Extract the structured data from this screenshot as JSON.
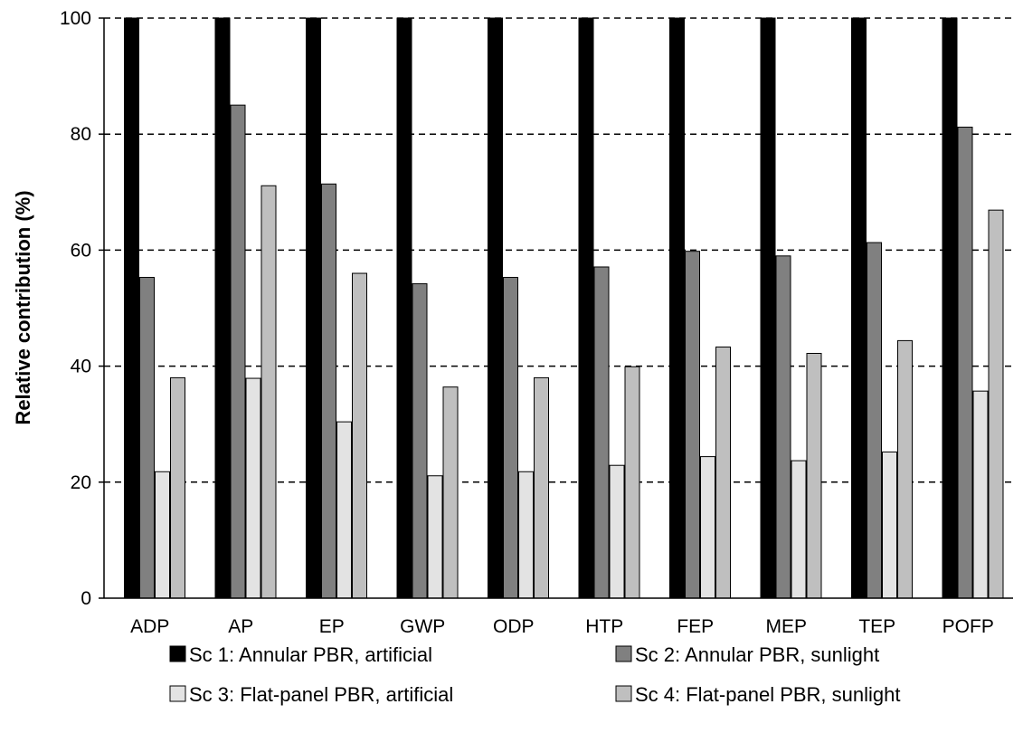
{
  "chart_data": {
    "type": "bar",
    "title": "",
    "xlabel": "",
    "ylabel": "Relative contribution  (%)",
    "ylim": [
      0,
      100
    ],
    "yticks": [
      0,
      20,
      40,
      60,
      80,
      100
    ],
    "grid": "horizontal-dashed",
    "legend_position": "bottom",
    "categories": [
      "ADP",
      "AP",
      "EP",
      "GWP",
      "ODP",
      "HTP",
      "FEP",
      "MEP",
      "TEP",
      "POFP"
    ],
    "series": [
      {
        "name": "Sc 1: Annular PBR, artificial",
        "color": "#000000",
        "values": [
          100,
          100,
          100,
          100,
          100,
          100,
          100,
          100,
          100,
          100
        ]
      },
      {
        "name": "Sc 2: Annular PBR, sunlight",
        "color": "#808080",
        "values": [
          55.3,
          85,
          71.4,
          54.2,
          55.3,
          57.1,
          59.8,
          59,
          61.3,
          81.2
        ]
      },
      {
        "name": "Sc 3: Flat-panel PBR, artificial",
        "color": "#e3e3e3",
        "values": [
          21.8,
          37.9,
          30.4,
          21.1,
          21.8,
          22.9,
          24.4,
          23.7,
          25.2,
          35.7
        ]
      },
      {
        "name": "Sc 4: Flat-panel PBR, sunlight",
        "color": "#bfbfbf",
        "values": [
          38,
          71.1,
          56,
          36.4,
          38,
          39.9,
          43.3,
          42.2,
          44.4,
          66.9
        ]
      }
    ]
  }
}
